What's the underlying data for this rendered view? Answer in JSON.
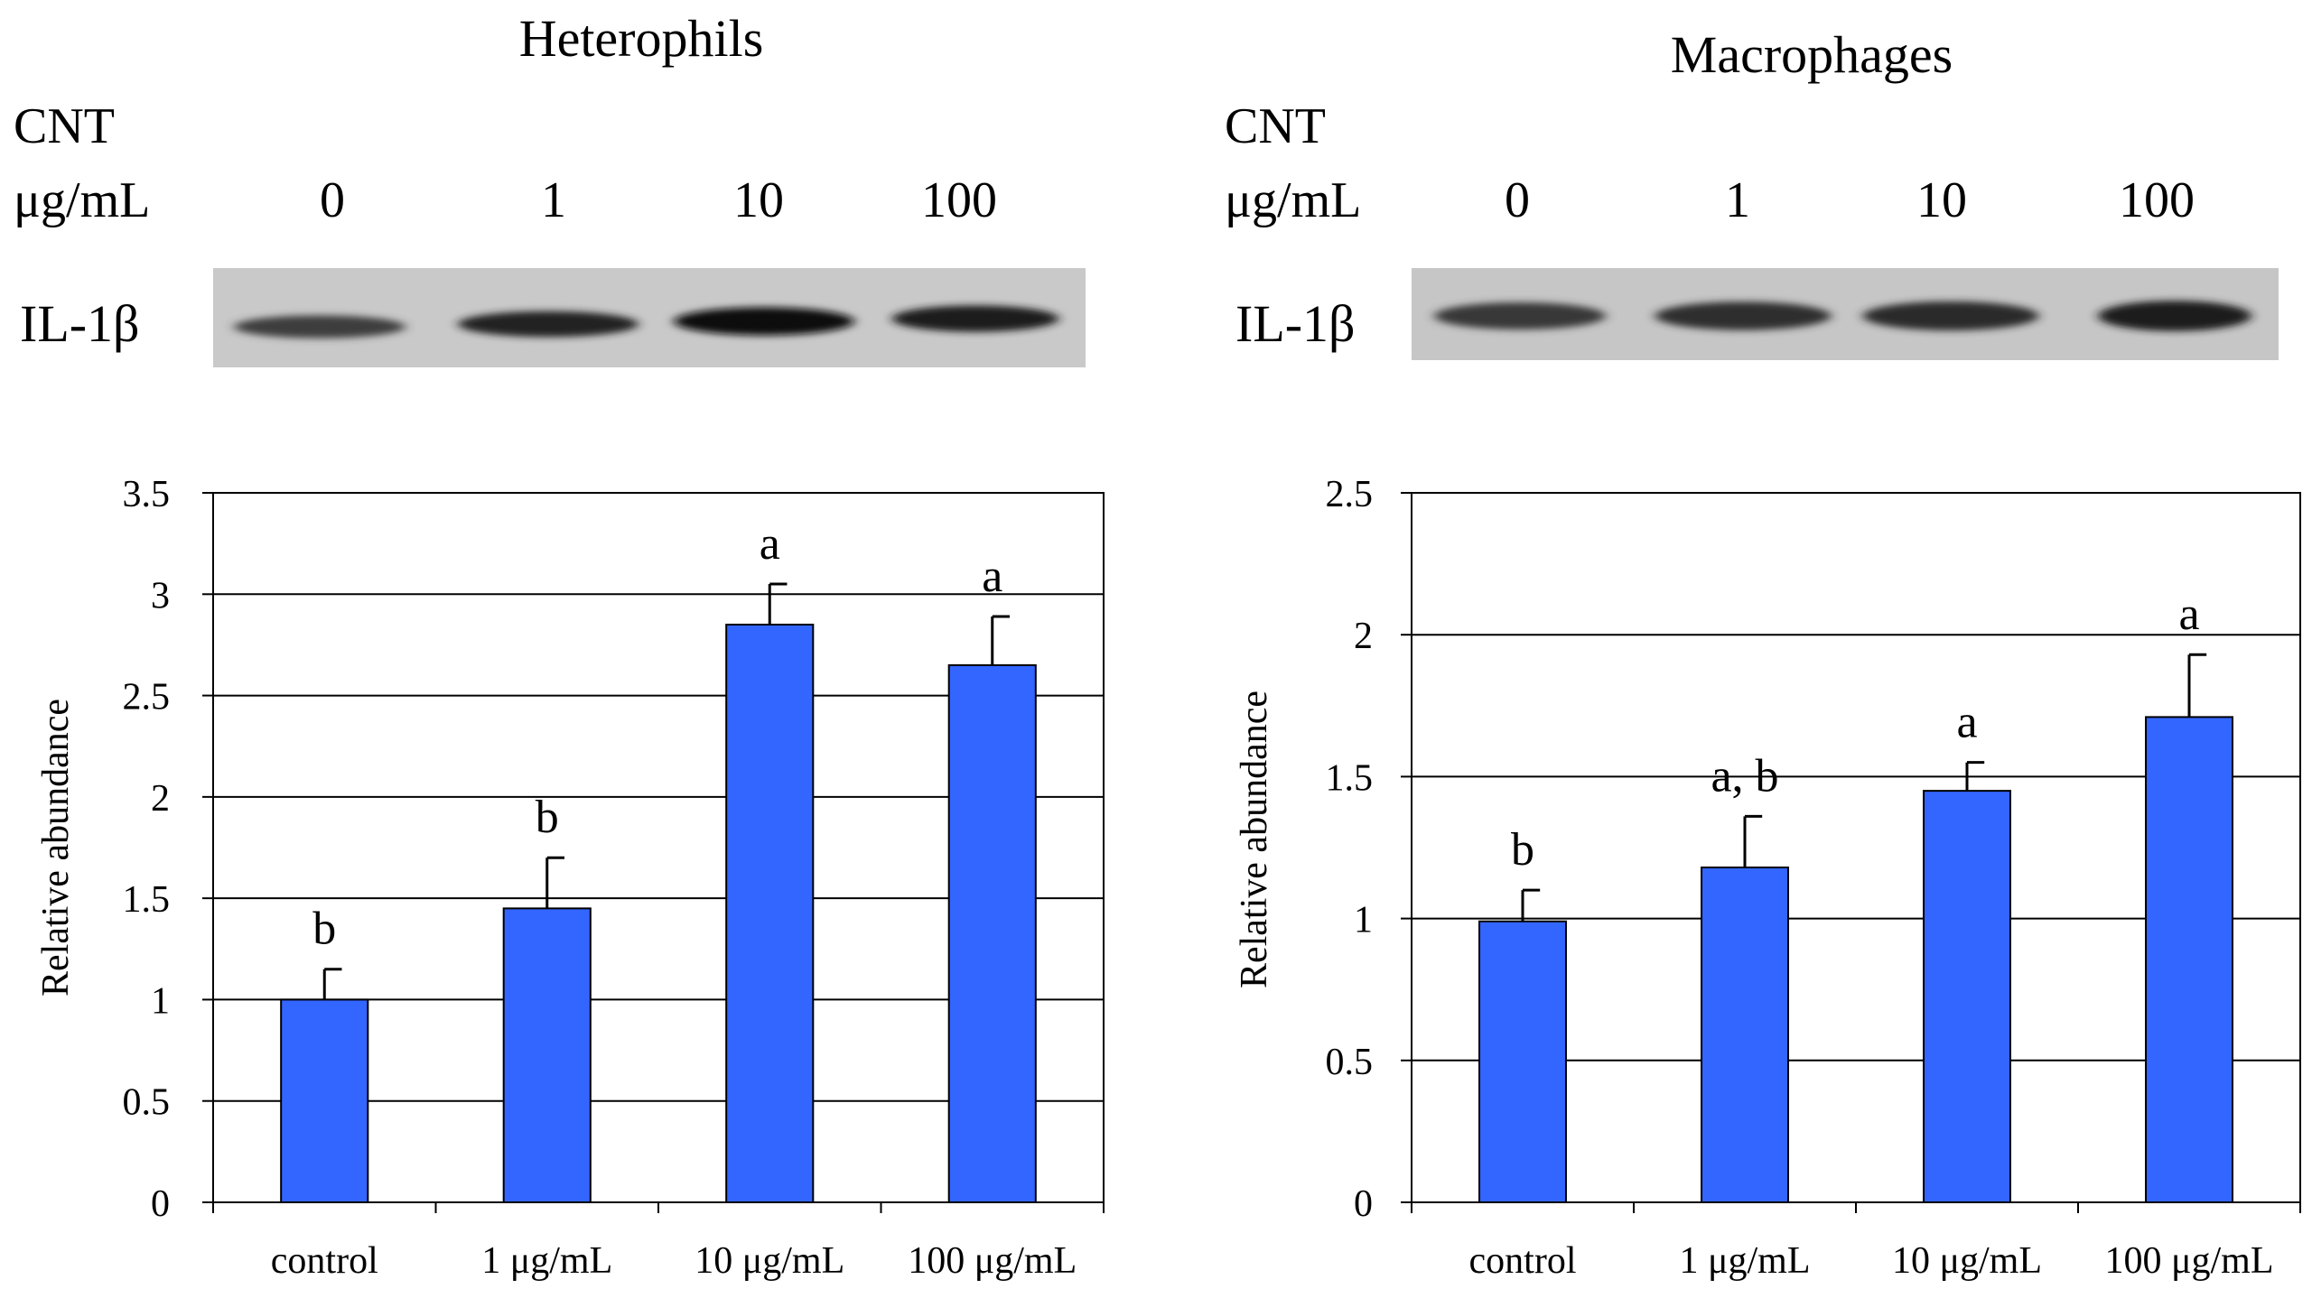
{
  "panels": [
    {
      "title": "Heterophils",
      "cnt_label": "CNT",
      "unit_label": "μg/mL",
      "conc_labels": [
        "0",
        "1",
        "10",
        "100"
      ],
      "blot_label": "IL-1β",
      "band_intensity": [
        0.55,
        0.8,
        1.0,
        0.85
      ]
    },
    {
      "title": "Macrophages",
      "cnt_label": "CNT",
      "unit_label": "μg/mL",
      "conc_labels": [
        "0",
        "1",
        "10",
        "100"
      ],
      "blot_label": "IL-1β",
      "band_intensity": [
        0.6,
        0.7,
        0.75,
        0.85
      ]
    }
  ],
  "chart_data": [
    {
      "type": "bar",
      "title": "Heterophils",
      "categories": [
        "control",
        "1 μg/mL",
        "10 μg/mL",
        "100 μg/mL"
      ],
      "values": [
        1.0,
        1.45,
        2.85,
        2.65
      ],
      "errors": [
        0.15,
        0.25,
        0.2,
        0.24
      ],
      "annotations": [
        "b",
        "b",
        "a",
        "a"
      ],
      "xlabel": "",
      "ylabel": "Relative abundance",
      "ylim": [
        0,
        3.5
      ],
      "yticks": [
        "0",
        "0.5",
        "1",
        "1.5",
        "2",
        "2.5",
        "3",
        "3.5"
      ],
      "ytick_values": [
        0,
        0.5,
        1,
        1.5,
        2,
        2.5,
        3,
        3.5
      ],
      "grid": true,
      "color": "#3366ff"
    },
    {
      "type": "bar",
      "title": "Macrophages",
      "categories": [
        "control",
        "1 μg/mL",
        "10 μg/mL",
        "100 μg/mL"
      ],
      "values": [
        0.99,
        1.18,
        1.45,
        1.71
      ],
      "errors": [
        0.11,
        0.18,
        0.1,
        0.22
      ],
      "annotations": [
        "b",
        "a, b",
        "a",
        "a"
      ],
      "xlabel": "",
      "ylabel": "Relative abundance",
      "ylim": [
        0,
        2.5
      ],
      "yticks": [
        "0",
        "0.5",
        "1",
        "1.5",
        "2",
        "2.5"
      ],
      "ytick_values": [
        0,
        0.5,
        1,
        1.5,
        2,
        2.5
      ],
      "grid": true,
      "color": "#3366ff"
    }
  ]
}
